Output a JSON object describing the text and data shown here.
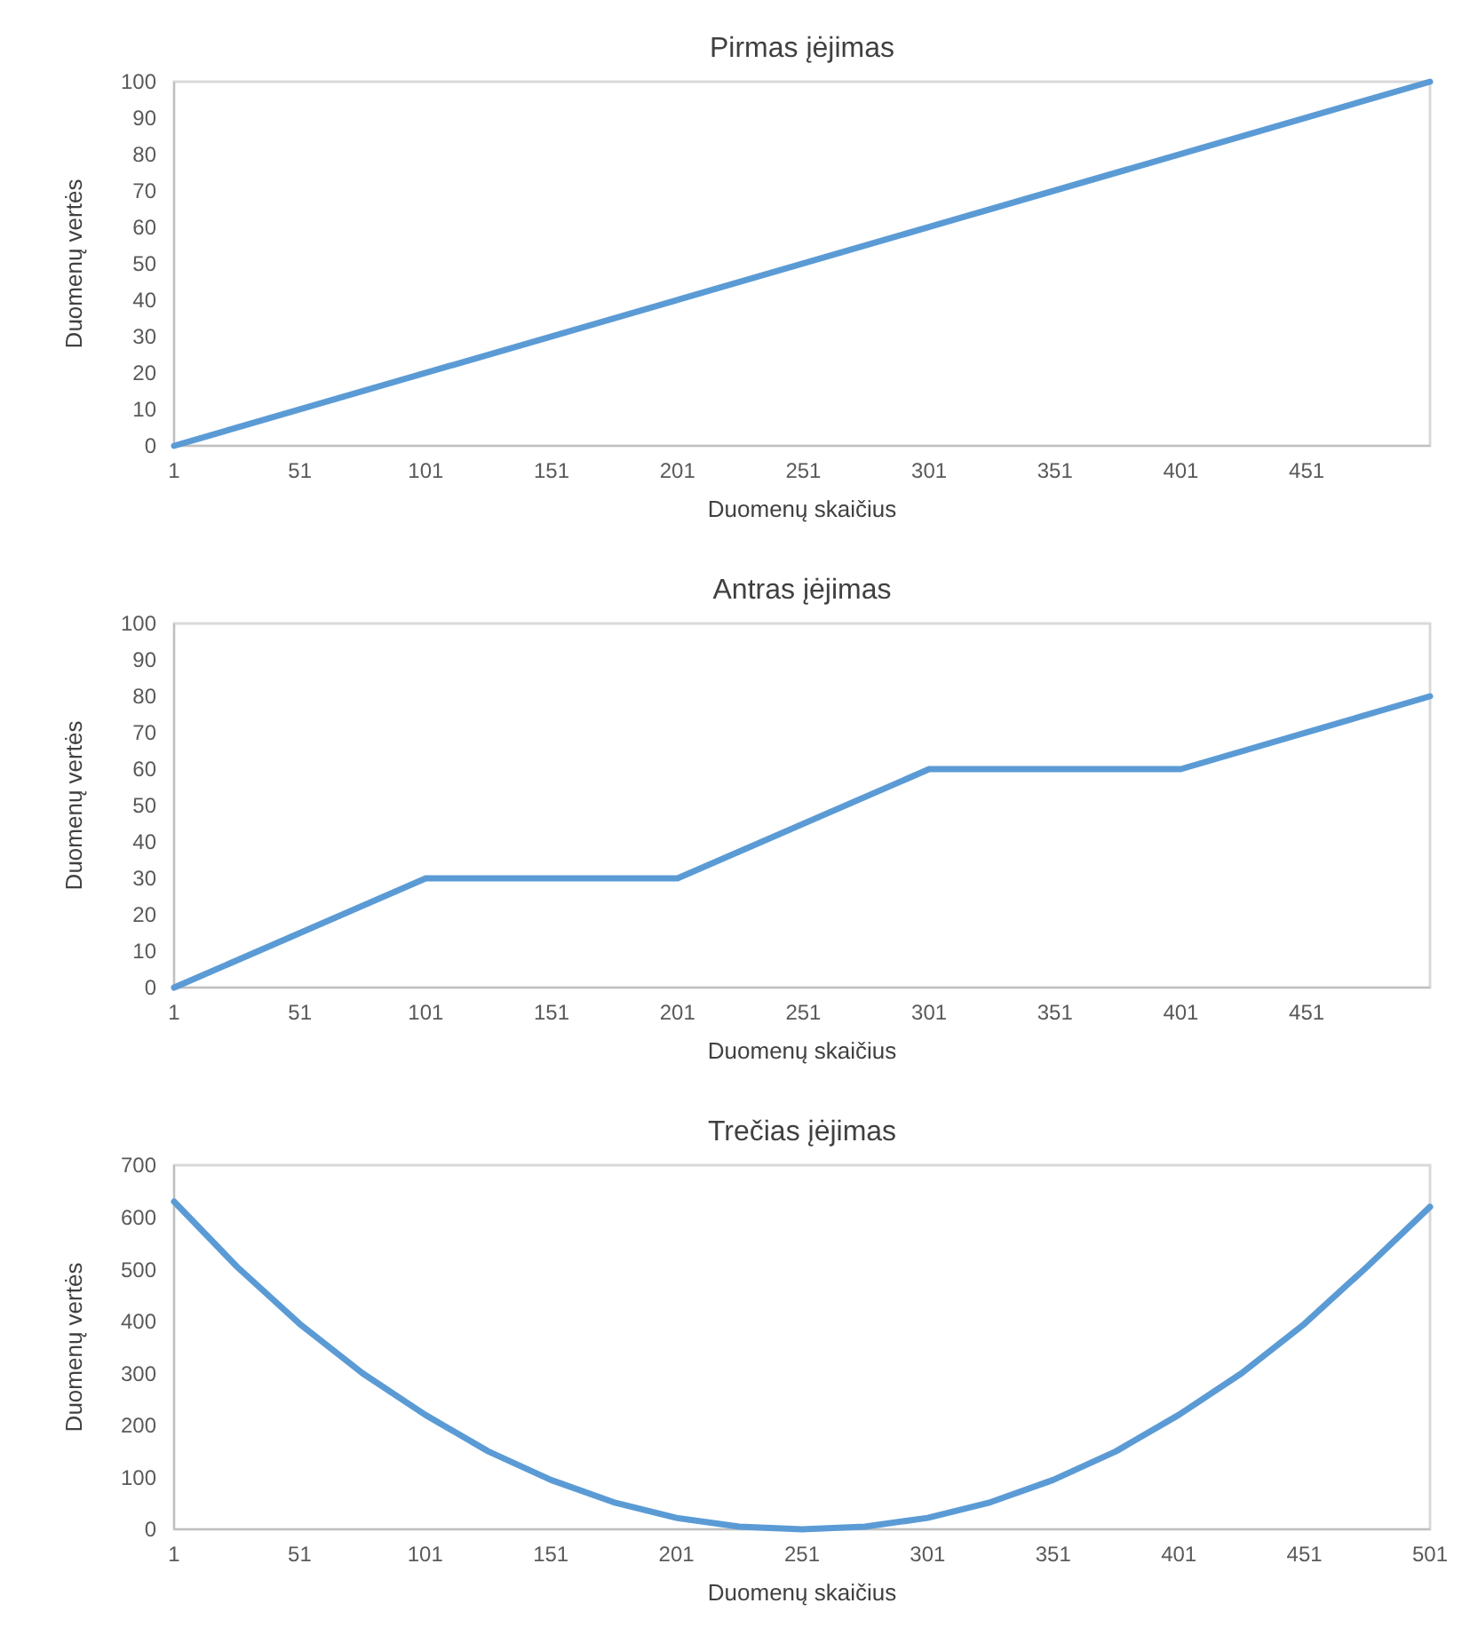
{
  "chart_data": [
    {
      "type": "line",
      "title": "Pirmas įėjimas",
      "xlabel": "Duomenų skaičius",
      "ylabel": "Duomenų vertės",
      "x": [
        1,
        500
      ],
      "series": [
        {
          "color": "#5b9bd5",
          "values": [
            0,
            100
          ]
        }
      ],
      "xlim": [
        1,
        500
      ],
      "xticks": [
        1,
        51,
        101,
        151,
        201,
        251,
        301,
        351,
        401,
        451
      ],
      "ylim": [
        0,
        100
      ],
      "yticks": [
        0,
        10,
        20,
        30,
        40,
        50,
        60,
        70,
        80,
        90,
        100
      ],
      "marker": "none",
      "line_style": "solid"
    },
    {
      "type": "line",
      "title": "Antras įėjimas",
      "xlabel": "Duomenų skaičius",
      "ylabel": "Duomenų vertės",
      "x": [
        1,
        101,
        201,
        301,
        401,
        500
      ],
      "series": [
        {
          "color": "#5b9bd5",
          "values": [
            0,
            30,
            30,
            60,
            60,
            80
          ]
        }
      ],
      "xlim": [
        1,
        500
      ],
      "xticks": [
        1,
        51,
        101,
        151,
        201,
        251,
        301,
        351,
        401,
        451
      ],
      "ylim": [
        0,
        100
      ],
      "yticks": [
        0,
        10,
        20,
        30,
        40,
        50,
        60,
        70,
        80,
        90,
        100
      ],
      "marker": "none",
      "line_style": "solid"
    },
    {
      "type": "line",
      "title": "Trečias įėjimas",
      "xlabel": "Duomenų skaičius",
      "ylabel": "Duomenų vertės",
      "x": [
        1,
        26,
        51,
        76,
        101,
        126,
        151,
        176,
        201,
        226,
        251,
        276,
        301,
        326,
        351,
        376,
        401,
        426,
        451,
        476,
        501
      ],
      "series": [
        {
          "color": "#5b9bd5",
          "values": [
            630,
            505,
            395,
            300,
            220,
            150,
            95,
            52,
            22,
            5,
            0,
            5,
            22,
            52,
            95,
            150,
            220,
            300,
            395,
            505,
            620
          ]
        }
      ],
      "xlim": [
        1,
        501
      ],
      "xticks": [
        1,
        51,
        101,
        151,
        201,
        251,
        301,
        351,
        401,
        451,
        501
      ],
      "ylim": [
        0,
        700
      ],
      "yticks": [
        0,
        100,
        200,
        300,
        400,
        500,
        600,
        700
      ],
      "marker": "none",
      "line_style": "solid"
    }
  ]
}
